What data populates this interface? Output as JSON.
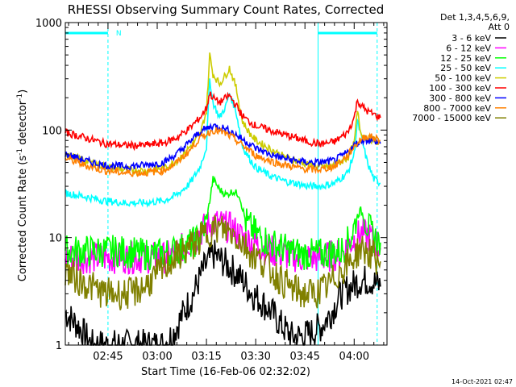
{
  "chart_data": {
    "type": "line",
    "title": "RHESSI Observing Summary Count Rates, Corrected",
    "xlabel": "Start Time (16-Feb-06 02:32:02)",
    "ylabel_main": "Corrected Count Rate (s",
    "ylabel_sup1": "-1",
    "ylabel_mid": " detector",
    "ylabel_sup2": "-1",
    "ylabel_end": ")",
    "y_scale": "log",
    "ylim": [
      1,
      1000
    ],
    "xlim_min": [
      0,
      98
    ],
    "y_ticks": [
      {
        "value": 1,
        "label": "1"
      },
      {
        "value": 10,
        "label": "10"
      },
      {
        "value": 100,
        "label": "100"
      },
      {
        "value": 1000,
        "label": "1000"
      }
    ],
    "x_ticks": [
      {
        "value": 13,
        "label": "02:45"
      },
      {
        "value": 28,
        "label": "03:00"
      },
      {
        "value": 43,
        "label": "03:15"
      },
      {
        "value": 58,
        "label": "03:30"
      },
      {
        "value": 73,
        "label": "03:45"
      },
      {
        "value": 88,
        "label": "04:00"
      }
    ],
    "legend_position": "right",
    "legend_header": [
      "Det 1,3,4,5,6,9,",
      "Att 0"
    ],
    "series": [
      {
        "name": "3 - 6 keV",
        "color": "#000000",
        "x": [
          0,
          4,
          8,
          12,
          16,
          20,
          24,
          28,
          30,
          33,
          36,
          39,
          42,
          45,
          48,
          51,
          54,
          57,
          60,
          63,
          66,
          69,
          72,
          75,
          78,
          81,
          84,
          87,
          90,
          93,
          96
        ],
        "y": [
          2,
          1.5,
          1,
          1,
          1,
          1,
          1,
          1,
          1,
          1.3,
          2,
          3,
          5,
          7,
          6,
          5,
          4,
          3,
          2.5,
          2,
          1.5,
          1.2,
          1.2,
          1.3,
          1.5,
          2,
          3,
          3.5,
          4,
          4,
          3.5
        ]
      },
      {
        "name": "6 - 12 keV",
        "color": "#ff00ff",
        "x": [
          0,
          8,
          16,
          24,
          30,
          33,
          36,
          39,
          42,
          45,
          48,
          51,
          54,
          57,
          60,
          66,
          72,
          78,
          84,
          87,
          90,
          93,
          96
        ],
        "y": [
          6.5,
          6.5,
          6.5,
          6.5,
          6.5,
          7,
          8,
          9.5,
          12,
          14,
          13,
          12,
          10,
          9,
          8,
          7,
          6.5,
          6.5,
          7,
          9,
          11,
          10,
          8
        ]
      },
      {
        "name": "12 - 25 keV",
        "color": "#00ff00",
        "x": [
          0,
          8,
          16,
          24,
          30,
          33,
          36,
          39,
          41,
          43,
          45,
          47,
          49,
          51,
          53,
          55,
          58,
          62,
          66,
          72,
          78,
          84,
          87,
          89,
          90,
          92,
          94,
          96
        ],
        "y": [
          7.5,
          7.5,
          7.5,
          7,
          7,
          7.5,
          8,
          9,
          10,
          14,
          35,
          28,
          25,
          27,
          25,
          14,
          11,
          9,
          8,
          7,
          7,
          7.5,
          10,
          16,
          18,
          13,
          10,
          9
        ]
      },
      {
        "name": "25 - 50 keV",
        "color": "#00ffff",
        "x": [
          0,
          6,
          12,
          18,
          24,
          30,
          34,
          38,
          41,
          43,
          44,
          45,
          47,
          49,
          50,
          52,
          54,
          56,
          58,
          62,
          66,
          70,
          74,
          78,
          82,
          86,
          88,
          89,
          90,
          92,
          94,
          96
        ],
        "y": [
          26,
          24,
          22,
          21,
          21,
          22,
          25,
          32,
          45,
          70,
          300,
          180,
          130,
          170,
          220,
          150,
          70,
          55,
          45,
          38,
          34,
          32,
          30,
          30,
          32,
          40,
          60,
          120,
          90,
          50,
          35,
          32
        ]
      },
      {
        "name": "50 - 100 keV",
        "color": "#cccc00",
        "x": [
          0,
          6,
          12,
          18,
          24,
          30,
          34,
          38,
          41,
          43,
          44,
          45,
          47,
          49,
          50,
          52,
          54,
          56,
          58,
          62,
          66,
          70,
          74,
          78,
          82,
          86,
          88,
          89,
          90,
          92,
          94,
          96
        ],
        "y": [
          60,
          52,
          46,
          43,
          42,
          44,
          52,
          70,
          90,
          150,
          500,
          330,
          270,
          330,
          380,
          250,
          120,
          95,
          80,
          68,
          58,
          52,
          48,
          45,
          47,
          55,
          75,
          150,
          95,
          85,
          80,
          75
        ]
      },
      {
        "name": "100 - 300 keV",
        "color": "#ff0000",
        "x": [
          0,
          6,
          12,
          18,
          24,
          30,
          34,
          38,
          41,
          43,
          44,
          45,
          47,
          49,
          50,
          52,
          54,
          56,
          58,
          62,
          66,
          70,
          74,
          78,
          82,
          86,
          88,
          89,
          90,
          92,
          94,
          96
        ],
        "y": [
          95,
          85,
          75,
          72,
          72,
          76,
          85,
          105,
          130,
          160,
          220,
          200,
          180,
          200,
          210,
          170,
          135,
          120,
          110,
          100,
          92,
          85,
          78,
          74,
          78,
          95,
          130,
          190,
          170,
          150,
          140,
          130
        ]
      },
      {
        "name": "300 - 800 keV",
        "color": "#0000ff",
        "x": [
          0,
          6,
          12,
          18,
          24,
          30,
          34,
          38,
          40,
          42,
          45,
          48,
          51,
          54,
          56,
          58,
          62,
          66,
          70,
          74,
          78,
          82,
          86,
          88,
          90,
          92,
          94,
          96
        ],
        "y": [
          60,
          52,
          47,
          46,
          47,
          50,
          60,
          78,
          90,
          100,
          110,
          105,
          95,
          82,
          75,
          68,
          60,
          55,
          52,
          50,
          50,
          52,
          62,
          72,
          80,
          82,
          80,
          75
        ]
      },
      {
        "name": "800 - 7000 keV",
        "color": "#ff8000",
        "x": [
          0,
          6,
          12,
          18,
          24,
          30,
          34,
          38,
          40,
          42,
          45,
          48,
          51,
          54,
          56,
          58,
          62,
          66,
          70,
          74,
          78,
          82,
          86,
          88,
          90,
          92,
          94,
          96
        ],
        "y": [
          55,
          47,
          42,
          40,
          40,
          42,
          50,
          65,
          78,
          88,
          100,
          95,
          85,
          72,
          65,
          58,
          52,
          48,
          45,
          43,
          43,
          46,
          58,
          70,
          82,
          88,
          85,
          80
        ]
      },
      {
        "name": "7000 - 15000 keV",
        "color": "#808000",
        "x": [
          0,
          4,
          8,
          12,
          16,
          20,
          24,
          28,
          32,
          36,
          40,
          43,
          45,
          48,
          51,
          54,
          57,
          60,
          64,
          68,
          72,
          76,
          80,
          84,
          87,
          90,
          93,
          96
        ],
        "y": [
          5,
          4,
          3.5,
          3,
          3,
          3,
          3.5,
          4.5,
          6,
          7.5,
          9,
          11,
          12,
          12,
          11,
          9,
          7,
          6,
          4.5,
          3.5,
          3,
          3,
          3.5,
          5,
          6,
          8,
          7,
          6
        ]
      }
    ],
    "annotations": {
      "night_label": "N",
      "night_bars": [
        [
          0,
          13
        ],
        [
          77,
          95
        ]
      ],
      "saa_lines": [
        0,
        13,
        77,
        95
      ]
    },
    "grid": false
  },
  "footer": {
    "timestamp": "14-Oct-2021 02:47"
  }
}
